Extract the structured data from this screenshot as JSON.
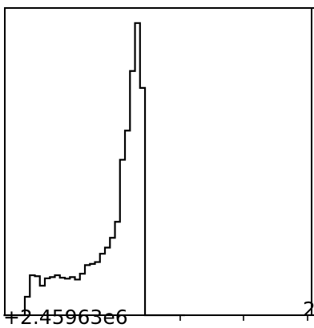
{
  "chart_data": {
    "type": "line",
    "style": "step-histogram",
    "x_offset_label": "+2.45963e6",
    "x_tick_labels": [
      "2"
    ],
    "x": [
      -0.2,
      3.2,
      4.0,
      4.8,
      5.6,
      6.4,
      7.2,
      8.0,
      8.8,
      9.6,
      10.4,
      11.2,
      12.0,
      12.8,
      13.6,
      14.4,
      15.2,
      16.0,
      16.8,
      17.6,
      18.4,
      19.2,
      20.0,
      20.8,
      21.6,
      22.4,
      23.2,
      24.0,
      24.8,
      25.6,
      26.4,
      27.2,
      28.0,
      28.8
    ],
    "y": [
      0,
      6,
      13,
      12.7,
      9.6,
      12,
      12.4,
      13,
      12.2,
      11.9,
      12.4,
      11.6,
      13.5,
      16.3,
      16.7,
      17.3,
      20,
      22,
      25.2,
      30.4,
      50.6,
      60.1,
      79.5,
      95.1,
      74,
      0,
      0,
      0,
      0,
      0,
      0,
      0,
      0,
      0
    ],
    "xlim": [
      0,
      49.4
    ],
    "ylim": [
      0,
      100
    ],
    "grid": false,
    "color": "#000000"
  }
}
